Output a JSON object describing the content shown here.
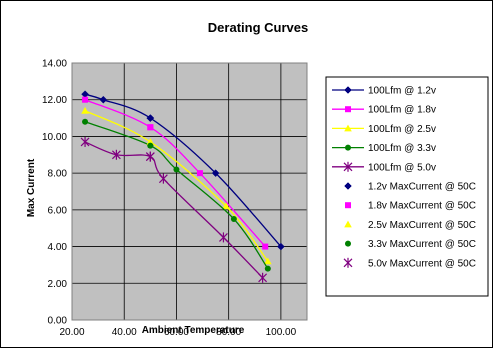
{
  "chart_data": {
    "type": "line",
    "title": "Derating Curves",
    "xlabel": "Ambient Temperature",
    "ylabel": "Max Current",
    "xlim": [
      20,
      110
    ],
    "ylim": [
      0,
      14
    ],
    "x_ticks": [
      "20.00",
      "40.00",
      "60.00",
      "80.00",
      "100.00"
    ],
    "y_ticks": [
      "0.00",
      "2.00",
      "4.00",
      "6.00",
      "8.00",
      "10.00",
      "12.00",
      "14.00"
    ],
    "grid": true,
    "legend_position": "right",
    "plot_background": "#c0c0c0",
    "series": [
      {
        "name": "100Lfm @ 1.2v",
        "color": "#000080",
        "marker": "diamond",
        "line": true,
        "x": [
          25,
          32,
          50,
          75,
          100
        ],
        "y": [
          12.3,
          12.0,
          11.0,
          8.0,
          4.0
        ]
      },
      {
        "name": "100Lfm @ 1.8v",
        "color": "#ff00ff",
        "marker": "square",
        "line": true,
        "x": [
          25,
          50,
          69,
          94
        ],
        "y": [
          12.0,
          10.5,
          8.0,
          4.0
        ]
      },
      {
        "name": "100Lfm @ 2.5v",
        "color": "#ffff00",
        "marker": "triangle",
        "line": true,
        "x": [
          25,
          50,
          79,
          95
        ],
        "y": [
          11.4,
          9.7,
          6.2,
          3.2
        ]
      },
      {
        "name": "100Lfm @ 3.3v",
        "color": "#008000",
        "marker": "circle",
        "line": true,
        "x": [
          25,
          50,
          60,
          82,
          95
        ],
        "y": [
          10.8,
          9.5,
          8.2,
          5.5,
          2.8
        ]
      },
      {
        "name": "100Lfm @ 5.0v",
        "color": "#800080",
        "marker": "star",
        "line": true,
        "x": [
          25,
          37,
          50,
          55,
          78,
          93
        ],
        "y": [
          9.7,
          9.0,
          8.9,
          7.7,
          4.5,
          2.3
        ]
      },
      {
        "name": "1.2v MaxCurrent @ 50C",
        "color": "#000080",
        "marker": "diamond",
        "line": false,
        "x": [
          50
        ],
        "y": [
          11.0
        ]
      },
      {
        "name": "1.8v MaxCurrent @ 50C",
        "color": "#ff00ff",
        "marker": "square",
        "line": false,
        "x": [
          50
        ],
        "y": [
          10.5
        ]
      },
      {
        "name": "2.5v MaxCurrent @ 50C",
        "color": "#ffff00",
        "marker": "triangle",
        "line": false,
        "x": [
          50
        ],
        "y": [
          9.7
        ]
      },
      {
        "name": "3.3v MaxCurrent @ 50C",
        "color": "#008000",
        "marker": "circle",
        "line": false,
        "x": [
          50
        ],
        "y": [
          9.5
        ]
      },
      {
        "name": "5.0v MaxCurrent @ 50C",
        "color": "#800080",
        "marker": "star",
        "line": false,
        "x": [
          50
        ],
        "y": [
          8.9
        ]
      }
    ]
  }
}
